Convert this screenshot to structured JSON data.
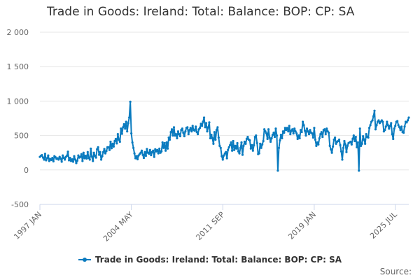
{
  "title": "Trade in Goods: Ireland: Total: Balance: BOP: CP: SA",
  "source_label": "Source:",
  "colors": {
    "series": "#0a7bbf",
    "grid": "#e6e6e6",
    "axis_text": "#666666"
  },
  "chart_data": {
    "type": "line",
    "title": "Trade in Goods: Ireland: Total: Balance: BOP: CP: SA",
    "xlabel": "",
    "ylabel": "",
    "ylim": [
      -500,
      2000
    ],
    "y_ticks": [
      -500,
      0,
      500,
      1000,
      1500,
      2000
    ],
    "y_tick_labels": [
      "-500",
      "0",
      "500",
      "1 000",
      "1 500",
      "2 000"
    ],
    "x_ticks": [
      {
        "index": 0,
        "label": "1997 JAN"
      },
      {
        "index": 88,
        "label": "2004 MAY"
      },
      {
        "index": 176,
        "label": "2011 SEP"
      },
      {
        "index": 264,
        "label": "2019 JAN"
      },
      {
        "index": 342,
        "label": "2025 JUL"
      }
    ],
    "grid": true,
    "legend_position": "bottom",
    "x_start": "1997 JAN",
    "frequency": "monthly",
    "series": [
      {
        "name": "Trade in Goods: Ireland: Total: Balance: BOP: CP: SA",
        "values": [
          190,
          205,
          215,
          180,
          150,
          235,
          140,
          170,
          210,
          130,
          160,
          145,
          175,
          125,
          200,
          185,
          160,
          170,
          150,
          190,
          165,
          120,
          210,
          175,
          150,
          190,
          205,
          265,
          140,
          175,
          130,
          155,
          120,
          200,
          150,
          100,
          135,
          210,
          180,
          190,
          230,
          130,
          250,
          170,
          205,
          165,
          260,
          175,
          150,
          310,
          195,
          130,
          250,
          205,
          180,
          300,
          330,
          220,
          260,
          150,
          200,
          260,
          305,
          240,
          275,
          330,
          330,
          290,
          410,
          315,
          380,
          340,
          420,
          450,
          385,
          520,
          440,
          410,
          600,
          525,
          620,
          665,
          600,
          700,
          560,
          680,
          760,
          990,
          530,
          400,
          320,
          240,
          170,
          200,
          155,
          210,
          230,
          250,
          280,
          220,
          175,
          260,
          205,
          305,
          250,
          235,
          290,
          215,
          260,
          280,
          190,
          300,
          270,
          290,
          240,
          310,
          250,
          270,
          400,
          320,
          390,
          280,
          400,
          310,
          470,
          440,
          550,
          590,
          500,
          620,
          500,
          520,
          460,
          560,
          520,
          490,
          580,
          600,
          540,
          490,
          560,
          610,
          620,
          520,
          580,
          610,
          560,
          640,
          580,
          570,
          630,
          550,
          520,
          590,
          610,
          670,
          640,
          700,
          760,
          620,
          680,
          560,
          620,
          690,
          460,
          510,
          460,
          380,
          550,
          440,
          580,
          620,
          470,
          350,
          320,
          200,
          150,
          210,
          240,
          260,
          170,
          290,
          330,
          360,
          400,
          280,
          420,
          290,
          350,
          310,
          390,
          270,
          240,
          320,
          400,
          220,
          350,
          410,
          380,
          450,
          480,
          440,
          430,
          310,
          360,
          280,
          360,
          480,
          500,
          390,
          230,
          240,
          380,
          320,
          370,
          420,
          590,
          560,
          530,
          450,
          590,
          470,
          410,
          460,
          510,
          540,
          480,
          600,
          500,
          -10,
          320,
          430,
          510,
          460,
          560,
          540,
          610,
          580,
          610,
          560,
          640,
          520,
          570,
          590,
          530,
          600,
          560,
          530,
          450,
          500,
          460,
          580,
          550,
          700,
          650,
          570,
          500,
          600,
          560,
          520,
          580,
          540,
          530,
          470,
          610,
          440,
          350,
          400,
          370,
          460,
          520,
          550,
          480,
          580,
          590,
          520,
          600,
          560,
          540,
          350,
          300,
          250,
          340,
          440,
          470,
          380,
          410,
          420,
          440,
          360,
          270,
          150,
          320,
          420,
          370,
          260,
          350,
          390,
          400,
          410,
          370,
          450,
          500,
          420,
          480,
          330,
          400,
          -10,
          600,
          350,
          380,
          490,
          440,
          380,
          520,
          480,
          470,
          610,
          650,
          700,
          720,
          780,
          860,
          590,
          650,
          700,
          720,
          680,
          700,
          720,
          700,
          560,
          580,
          630,
          700,
          650,
          600,
          640,
          680,
          520,
          450,
          600,
          640,
          700,
          710,
          650,
          620,
          580,
          630,
          550,
          540,
          630,
          700,
          690,
          720,
          760
        ]
      }
    ]
  }
}
